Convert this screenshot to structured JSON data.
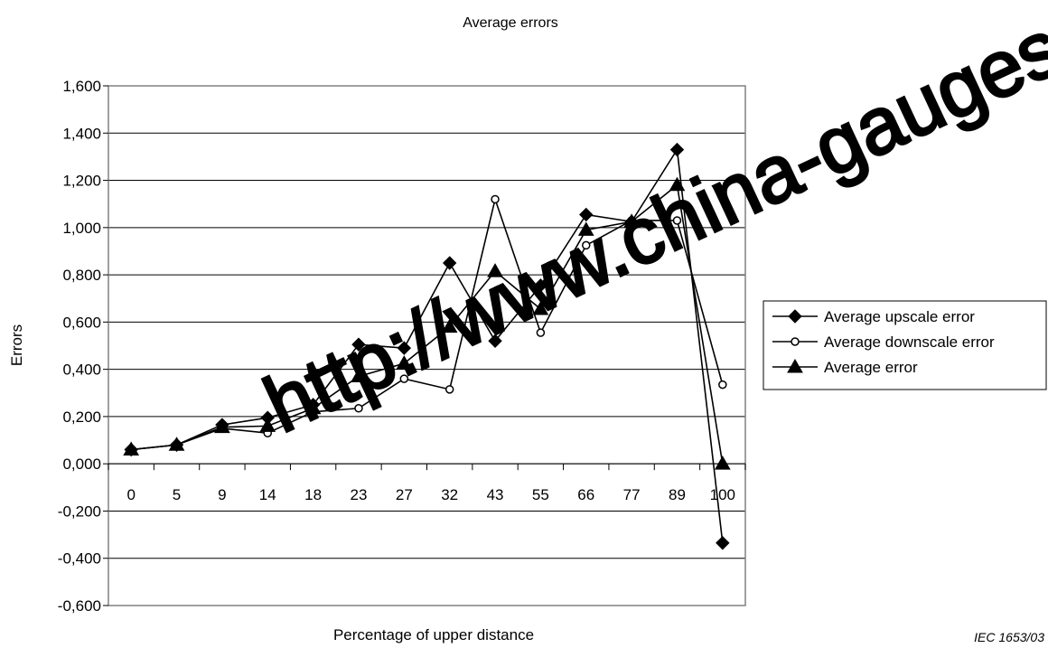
{
  "chart_data": {
    "type": "line",
    "title": "Average errors",
    "xlabel": "Percentage of upper distance",
    "ylabel": "Errors",
    "ylim": [
      -0.6,
      1.6
    ],
    "y_ticks": [
      -0.6,
      -0.4,
      -0.2,
      0.0,
      0.2,
      0.4,
      0.6,
      0.8,
      1.0,
      1.2,
      1.4,
      1.6
    ],
    "y_tick_labels": [
      "-0,600",
      "-0,400",
      "-0,200",
      "0,000",
      "0,200",
      "0,400",
      "0,600",
      "0,800",
      "1,000",
      "1,200",
      "1,400",
      "1,600"
    ],
    "categories": [
      "0",
      "5",
      "9",
      "14",
      "18",
      "23",
      "27",
      "32",
      "43",
      "55",
      "66",
      "77",
      "89",
      "100"
    ],
    "grid": "horizontal",
    "legend_position": "right",
    "series": [
      {
        "name": "Average upscale error",
        "marker": "diamond",
        "values": [
          0.06,
          0.08,
          0.165,
          0.195,
          0.25,
          0.505,
          0.49,
          0.85,
          0.52,
          0.755,
          1.055,
          1.025,
          1.33,
          -0.335
        ]
      },
      {
        "name": "Average downscale error",
        "marker": "open-circle",
        "values": [
          0.06,
          0.08,
          0.15,
          0.13,
          0.22,
          0.235,
          0.36,
          0.315,
          1.12,
          0.555,
          0.925,
          1.03,
          1.03,
          0.335
        ]
      },
      {
        "name": "Average error",
        "marker": "triangle",
        "values": [
          0.06,
          0.08,
          0.155,
          0.16,
          0.235,
          0.37,
          0.425,
          0.58,
          0.815,
          0.655,
          0.99,
          1.025,
          1.18,
          0.0
        ]
      }
    ]
  },
  "watermark": "http://www.china-gauges.com",
  "credit": "IEC   1653/03",
  "colors": {
    "line": "#000000",
    "grid": "#000000",
    "frame": "#808080",
    "background": "#ffffff"
  }
}
